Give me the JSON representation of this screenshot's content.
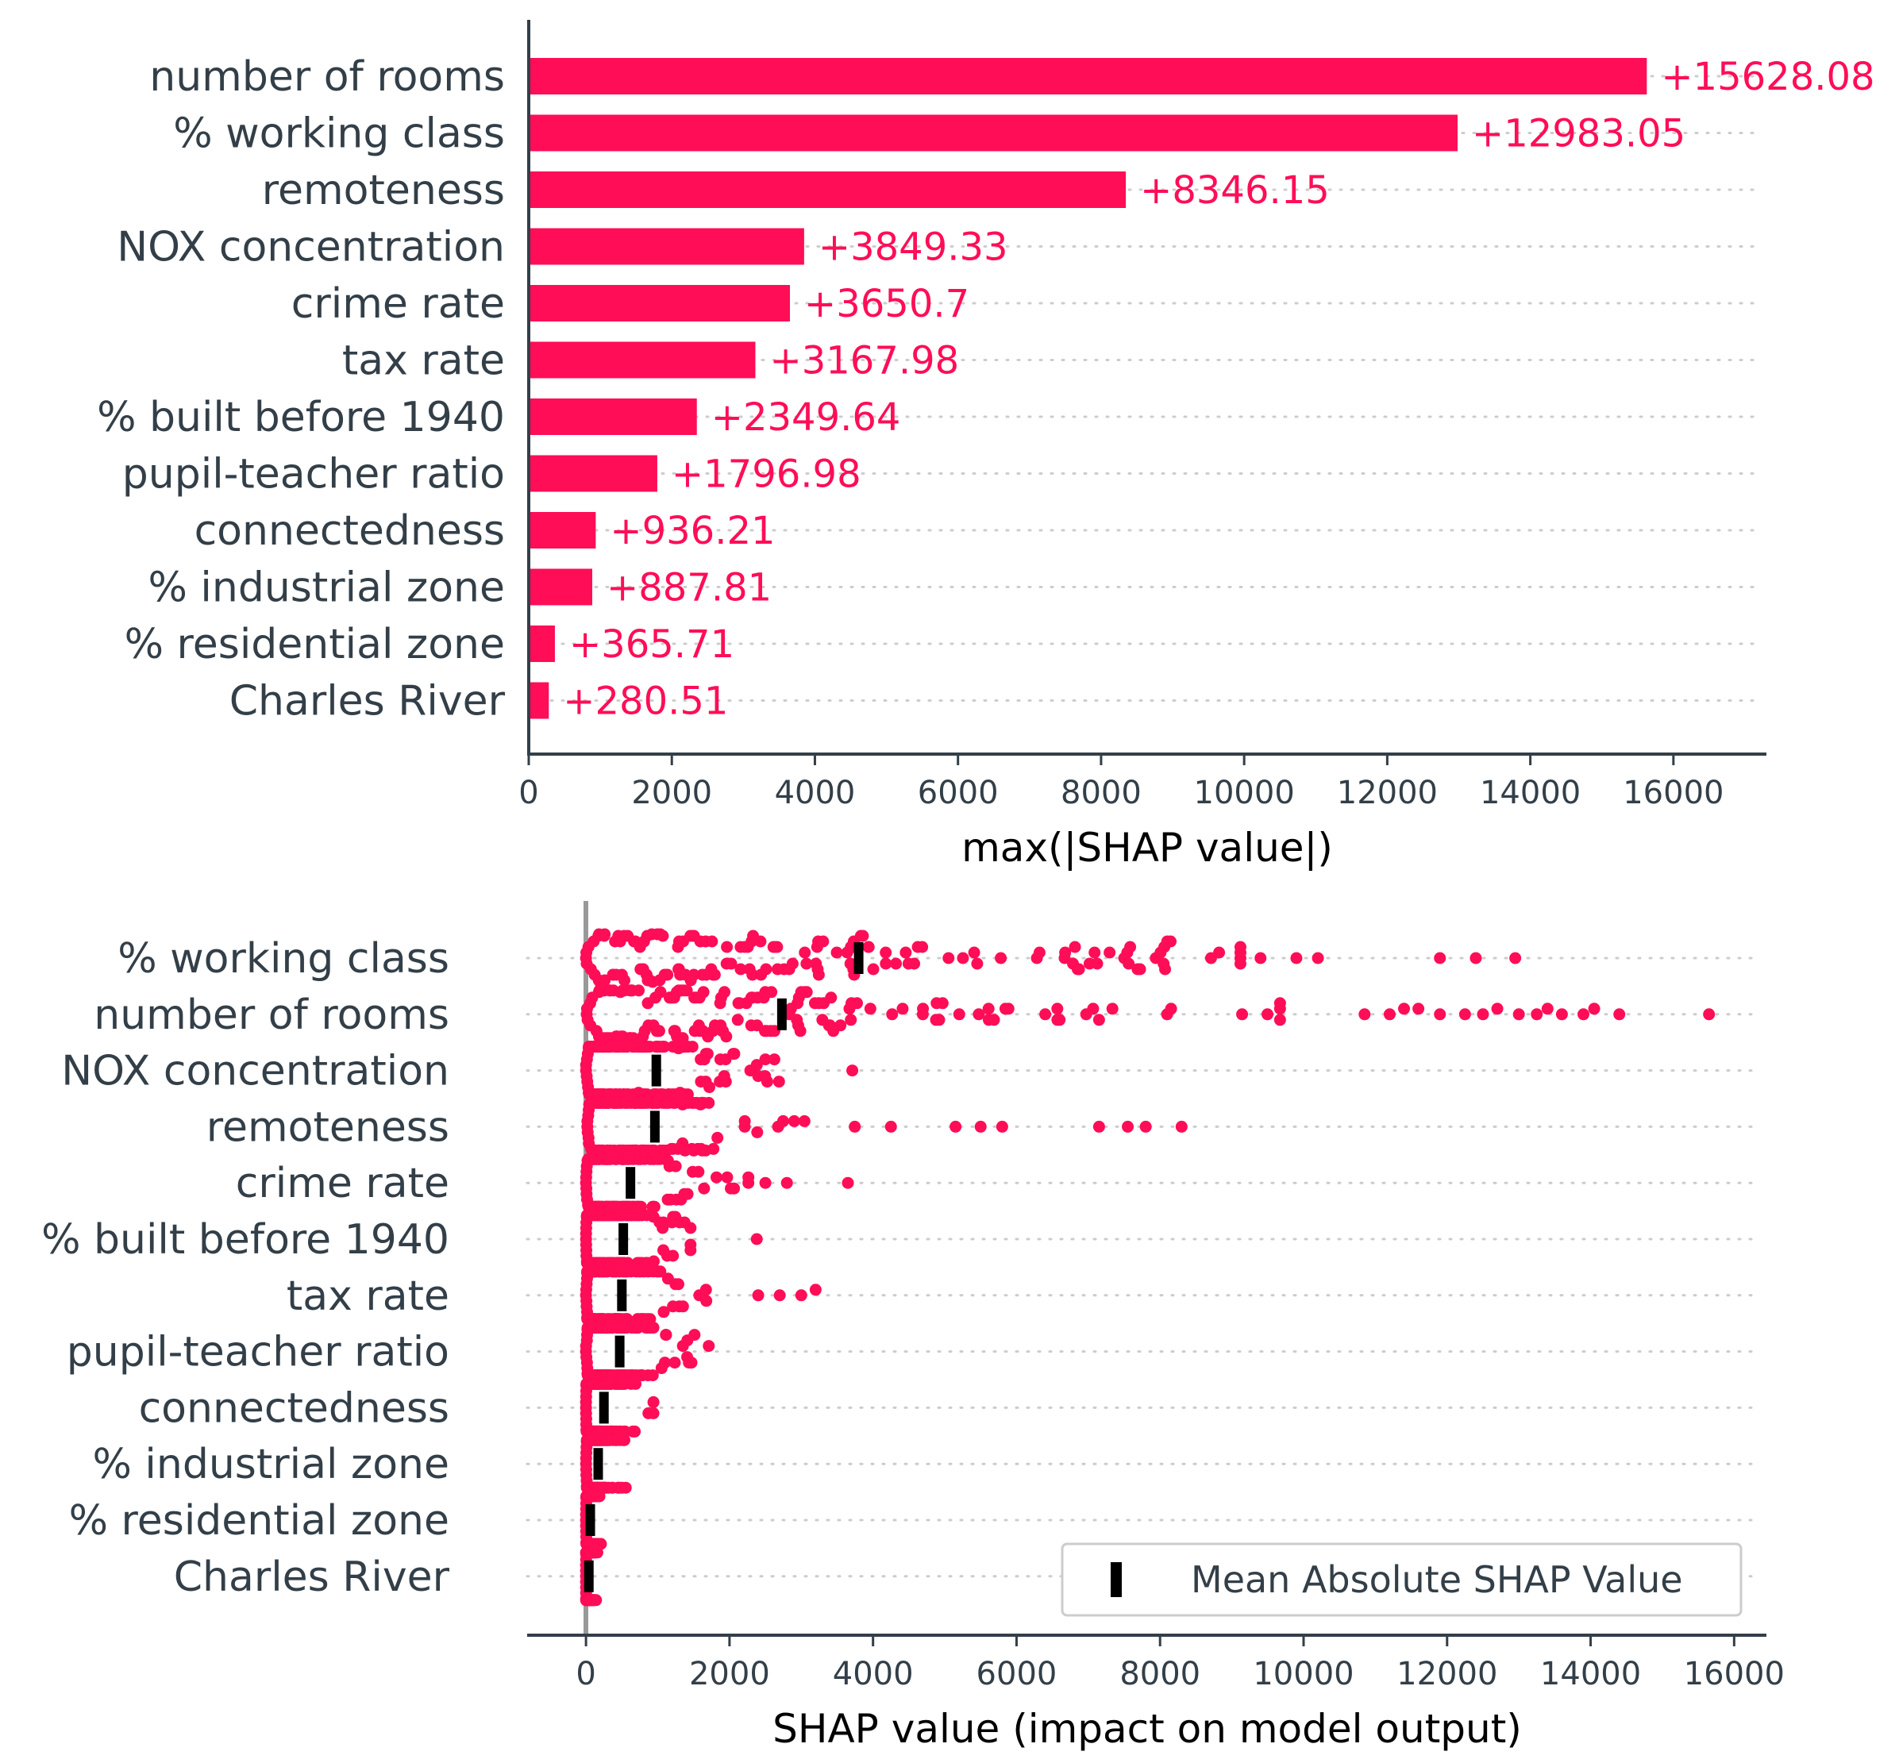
{
  "colors": {
    "positive": "#ff0d57",
    "text": "#333f48",
    "axis": "#333f48",
    "grid": "#cccccc",
    "mean_marker": "#000000",
    "zero_line": "#999999"
  },
  "chart_data": [
    {
      "type": "bar",
      "orientation": "horizontal",
      "categories": [
        "number of rooms",
        "% working class",
        "remoteness",
        "NOX concentration",
        "crime rate",
        "tax rate",
        "% built before 1940",
        "pupil-teacher ratio",
        "connectedness",
        "% industrial zone",
        "% residential zone",
        "Charles River"
      ],
      "values": [
        15628.08,
        12983.05,
        8346.15,
        3849.33,
        3650.7,
        3167.98,
        2349.64,
        1796.98,
        936.21,
        887.81,
        365.71,
        280.51
      ],
      "value_labels": [
        "+15628.08",
        "+12983.05",
        "+8346.15",
        "+3849.33",
        "+3650.7",
        "+3167.98",
        "+2349.64",
        "+1796.98",
        "+936.21",
        "+887.81",
        "+365.71",
        "+280.51"
      ],
      "xlabel": "max(|SHAP value|)",
      "xticks": [
        0,
        2000,
        4000,
        6000,
        8000,
        10000,
        12000,
        14000,
        16000
      ],
      "xticklabels": [
        "0",
        "2000",
        "4000",
        "6000",
        "8000",
        "10000",
        "12000",
        "14000",
        "16000"
      ],
      "xlim": [
        0,
        17300
      ],
      "grid": "dotted horizontal row guides"
    },
    {
      "type": "scatter",
      "subtype": "beeswarm",
      "categories": [
        "% working class",
        "number of rooms",
        "NOX concentration",
        "remoteness",
        "crime rate",
        "% built before 1940",
        "tax rate",
        "pupil-teacher ratio",
        "connectedness",
        "% industrial zone",
        "% residential zone",
        "Charles River"
      ],
      "mean_abs_shap": [
        3800,
        2730,
        980,
        960,
        620,
        520,
        500,
        470,
        250,
        170,
        60,
        40
      ],
      "max_shap": [
        13000,
        15600,
        3850,
        8350,
        3650,
        2350,
        3170,
        1800,
        940,
        890,
        370,
        280
      ],
      "outliers": [
        [
          9400,
          9900,
          10200,
          11900,
          12400,
          12950
        ],
        [
          6400,
          6600,
          10850,
          11200,
          11400,
          11600,
          11900,
          12250,
          12500,
          12700,
          13000,
          13250,
          13400,
          13600,
          13900,
          14050,
          14400,
          15650
        ],
        [],
        [
          4250,
          5150,
          5500,
          5800,
          7150,
          7550,
          7800,
          8300
        ],
        [
          2500,
          2800,
          3650
        ],
        [
          2380
        ],
        [
          2400,
          2700,
          3000,
          3200
        ],
        [],
        [],
        [],
        [],
        []
      ],
      "xlabel": "SHAP value (impact on model output)",
      "xticks": [
        0,
        2000,
        4000,
        6000,
        8000,
        10000,
        12000,
        14000,
        16000
      ],
      "xticklabels": [
        "0",
        "2000",
        "4000",
        "6000",
        "8000",
        "10000",
        "12000",
        "14000",
        "16000"
      ],
      "xlim": [
        -820,
        16450
      ],
      "legend": {
        "label": "Mean Absolute SHAP Value",
        "position": "bottom-right"
      },
      "zero_line": true,
      "grid": "dotted horizontal row guides"
    }
  ]
}
